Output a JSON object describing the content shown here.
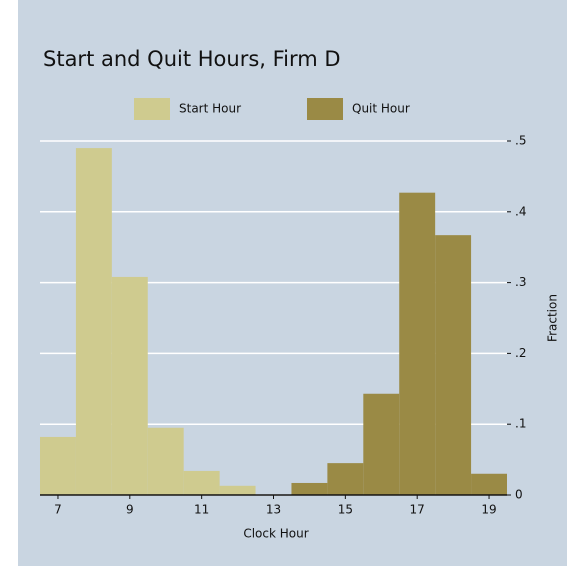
{
  "chart_data": {
    "type": "histogram",
    "title": "Start and Quit Hours, Firm D",
    "xlabel": "Clock Hour",
    "ylabel": "Fraction",
    "series": [
      {
        "name": "Start Hour",
        "color": "#cfcb8f",
        "bins": [
          6.5,
          7.5,
          8.5,
          9.5,
          10.5,
          11.5,
          12.5
        ],
        "values": [
          0.082,
          0.49,
          0.308,
          0.095,
          0.034,
          0.013
        ]
      },
      {
        "name": "Quit Hour",
        "color": "#9a8a45",
        "bins": [
          13.5,
          14.5,
          15.5,
          16.5,
          17.5,
          18.5,
          19.5
        ],
        "values": [
          0.017,
          0.045,
          0.143,
          0.427,
          0.367,
          0.03
        ]
      }
    ],
    "xlim": [
      6.5,
      19.5
    ],
    "xticks": [
      7,
      9,
      11,
      13,
      15,
      17,
      19
    ],
    "ylim": [
      0,
      0.5
    ],
    "yticks": [
      0,
      {
        "value": 0.1,
        "label": ".1"
      },
      {
        "value": 0.2,
        "label": ".2"
      },
      {
        "value": 0.3,
        "label": ".3"
      },
      {
        "value": 0.4,
        "label": ".4"
      },
      {
        "value": 0.5,
        "label": ".5"
      }
    ],
    "grid": true
  }
}
